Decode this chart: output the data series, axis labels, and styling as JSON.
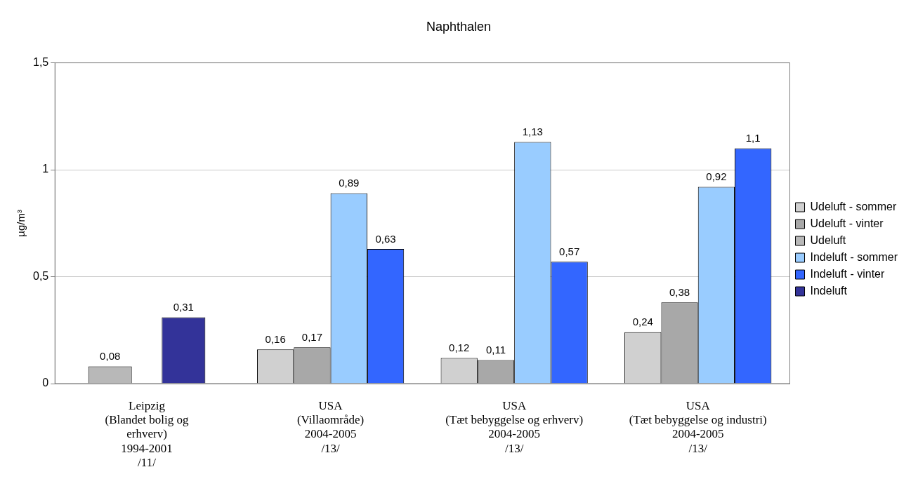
{
  "chart_data": {
    "type": "bar",
    "title": "Naphthalen",
    "ylabel": "µg/m³",
    "categories": [
      "Leipzig\n(Blandet bolig og\nerhverv)\n1994-2001\n/11/",
      "USA\n(Villaområde)\n2004-2005\n/13/",
      "USA\n(Tæt bebyggelse og erhverv)\n2004-2005\n/13/",
      "USA\n(Tæt bebyggelse og industri)\n2004-2005\n/13/"
    ],
    "series": [
      {
        "name": "Udeluft - sommer",
        "color": "#d0d0d0",
        "values": [
          null,
          0.16,
          0.12,
          0.24
        ],
        "value_labels": [
          null,
          "0,16",
          "0,12",
          "0,24"
        ]
      },
      {
        "name": "Udeluft - vinter",
        "color": "#a8a8a8",
        "values": [
          null,
          0.17,
          0.11,
          0.38
        ],
        "value_labels": [
          null,
          "0,17",
          "0,11",
          "0,38"
        ]
      },
      {
        "name": "Udeluft",
        "color": "#b8b8b8",
        "values": [
          0.08,
          null,
          null,
          null
        ],
        "value_labels": [
          "0,08",
          null,
          null,
          null
        ]
      },
      {
        "name": "Indeluft - sommer",
        "color": "#99ccff",
        "values": [
          null,
          0.89,
          1.13,
          0.92
        ],
        "value_labels": [
          null,
          "0,89",
          "1,13",
          "0,92"
        ]
      },
      {
        "name": "Indeluft - vinter",
        "color": "#3366ff",
        "values": [
          null,
          0.63,
          0.57,
          1.1
        ],
        "value_labels": [
          null,
          "0,63",
          "0,57",
          "1,1"
        ]
      },
      {
        "name": "Indeluft",
        "color": "#333399",
        "values": [
          0.31,
          null,
          null,
          null
        ],
        "value_labels": [
          "0,31",
          null,
          null,
          null
        ]
      }
    ],
    "ylim": [
      0,
      1.5
    ],
    "yticks": [
      0,
      {
        "value": 0.5,
        "label": "0,5"
      },
      1,
      {
        "value": 1.5,
        "label": "1,5"
      }
    ],
    "grid": "y",
    "legend": "right"
  }
}
